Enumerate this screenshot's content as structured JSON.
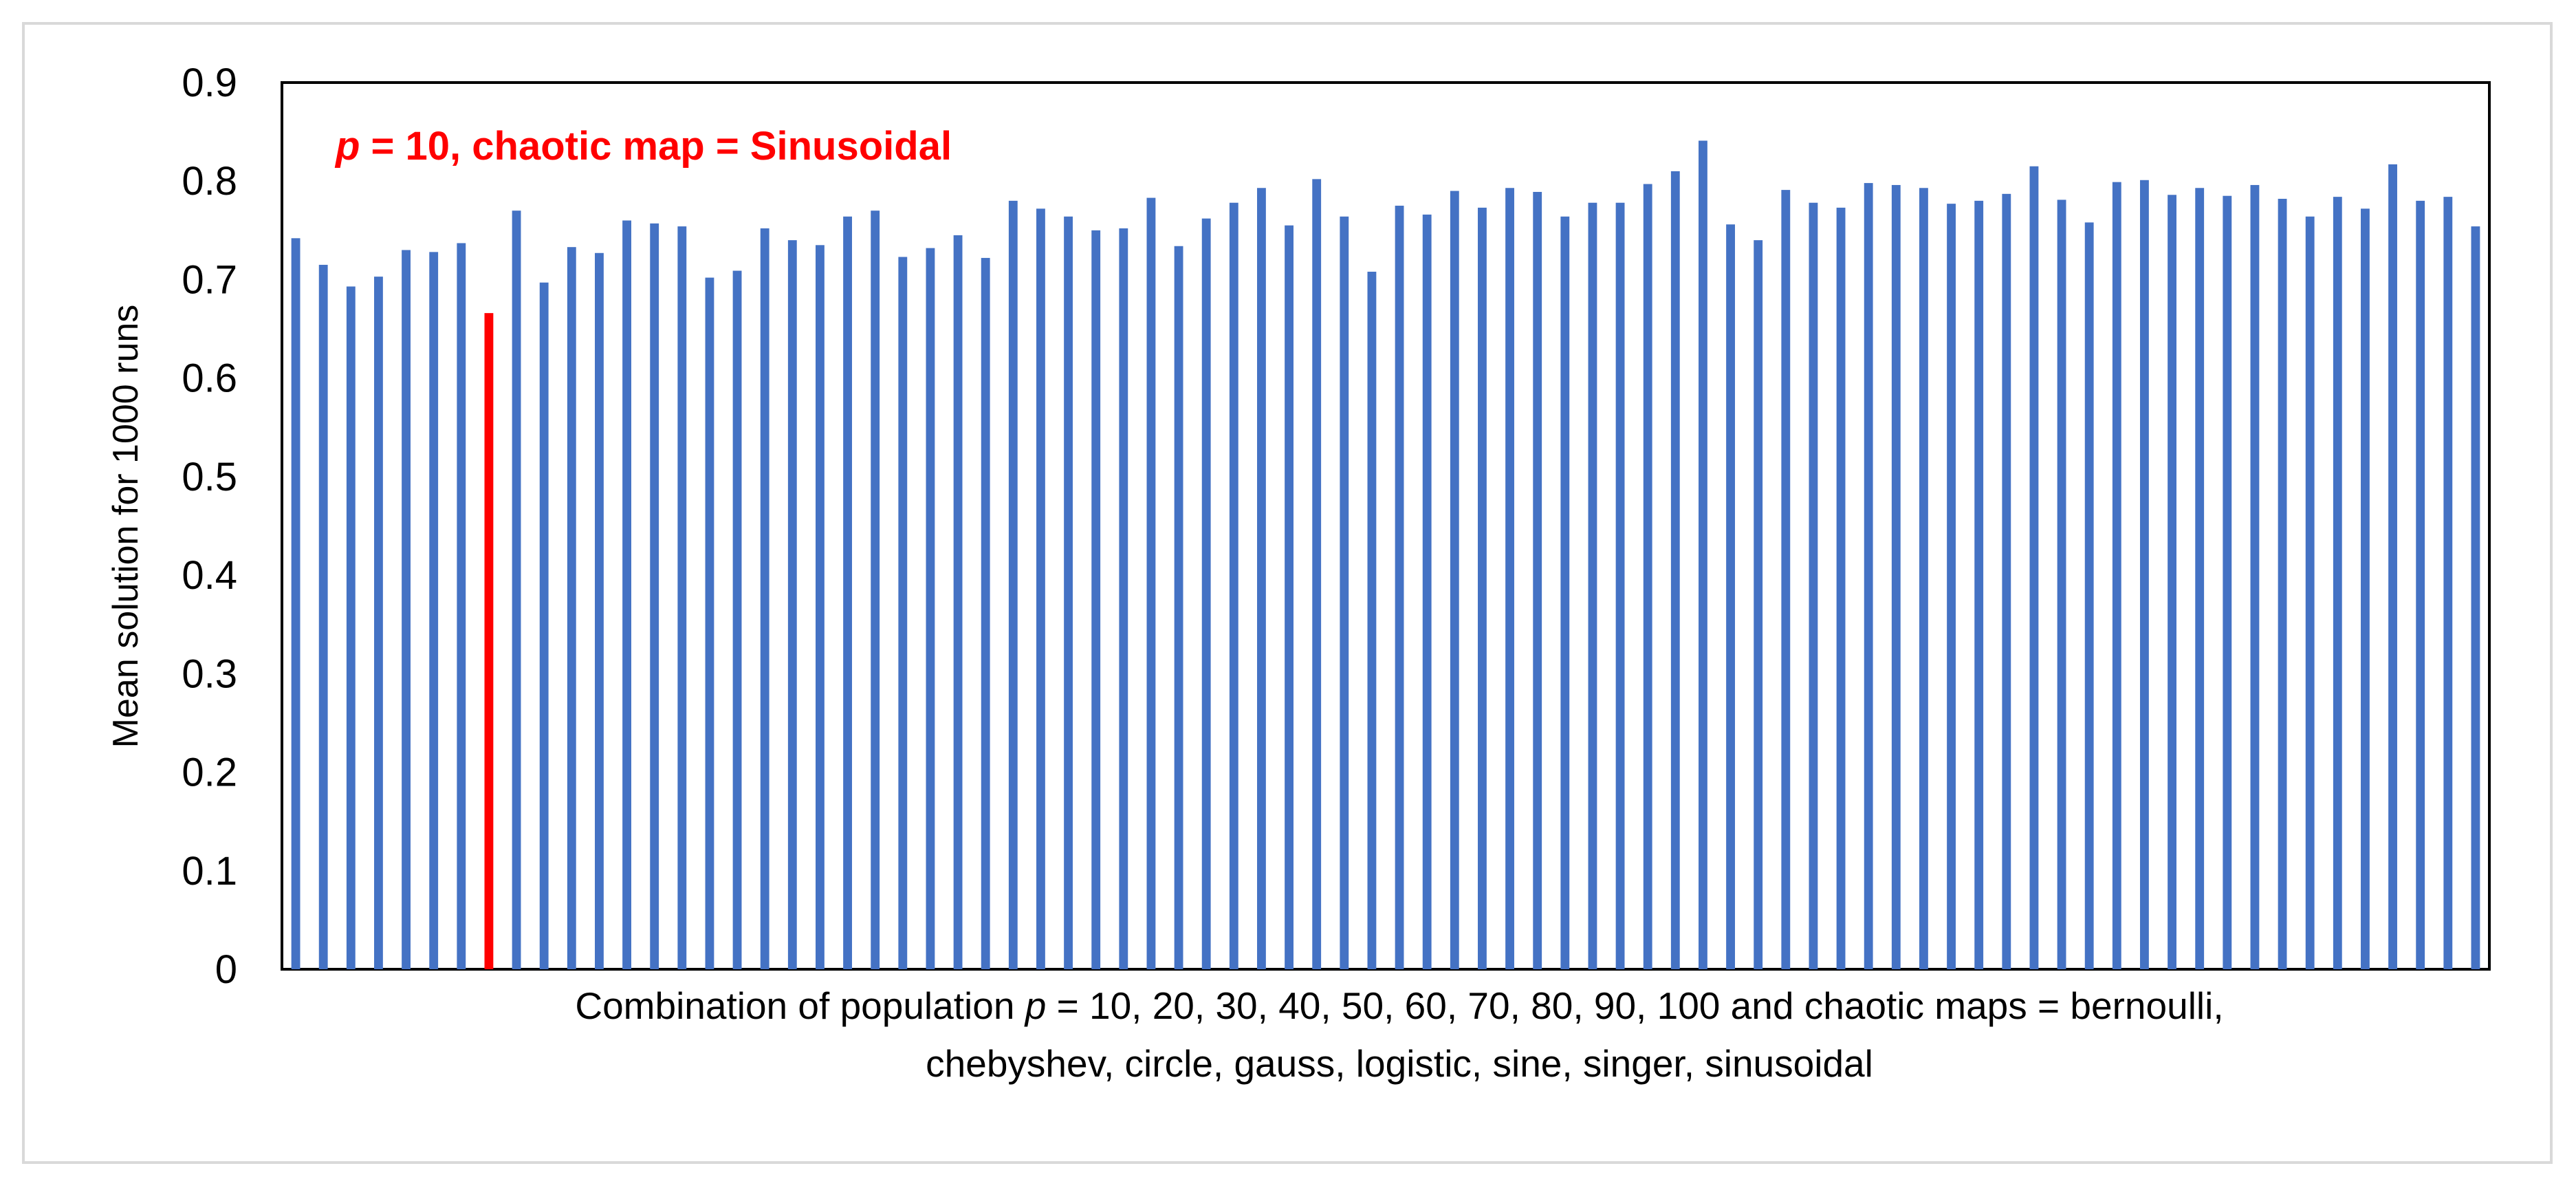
{
  "chart_data": {
    "type": "bar",
    "title": "",
    "xlabel": "",
    "xlabel_line1_prefix": "Combination of population ",
    "xlabel_line1_var": "p",
    "xlabel_line1_suffix": " = 10, 20, 30, 40, 50, 60, 70, 80, 90, 100 and chaotic maps = bernoulli,",
    "xlabel_line2": "chebyshev, circle, gauss, logistic, sine, singer, sinusoidal",
    "ylabel": "Mean solution for 1000 runs",
    "ylim": [
      0,
      0.9
    ],
    "yticks": [
      "0",
      "0.1",
      "0.2",
      "0.3",
      "0.4",
      "0.5",
      "0.6",
      "0.7",
      "0.8",
      "0.9"
    ],
    "grid": false,
    "bar_color": "#4472C4",
    "highlight_color": "#FF0000",
    "highlight_index": 7,
    "annotation": {
      "var": "p",
      "text": " = 10, chaotic map = Sinusoidal",
      "color": "#FF0000"
    },
    "values": [
      0.742,
      0.715,
      0.693,
      0.703,
      0.73,
      0.728,
      0.737,
      0.666,
      0.77,
      0.697,
      0.733,
      0.727,
      0.76,
      0.757,
      0.754,
      0.702,
      0.709,
      0.752,
      0.74,
      0.735,
      0.764,
      0.77,
      0.723,
      0.732,
      0.745,
      0.722,
      0.78,
      0.772,
      0.764,
      0.75,
      0.752,
      0.783,
      0.734,
      0.762,
      0.778,
      0.793,
      0.755,
      0.802,
      0.764,
      0.708,
      0.775,
      0.766,
      0.79,
      0.773,
      0.793,
      0.789,
      0.764,
      0.778,
      0.778,
      0.797,
      0.81,
      0.841,
      0.756,
      0.74,
      0.791,
      0.778,
      0.773,
      0.798,
      0.796,
      0.793,
      0.777,
      0.78,
      0.787,
      0.815,
      0.781,
      0.758,
      0.799,
      0.801,
      0.786,
      0.793,
      0.785,
      0.796,
      0.782,
      0.764,
      0.784,
      0.772,
      0.817,
      0.78,
      0.784,
      0.754
    ]
  }
}
